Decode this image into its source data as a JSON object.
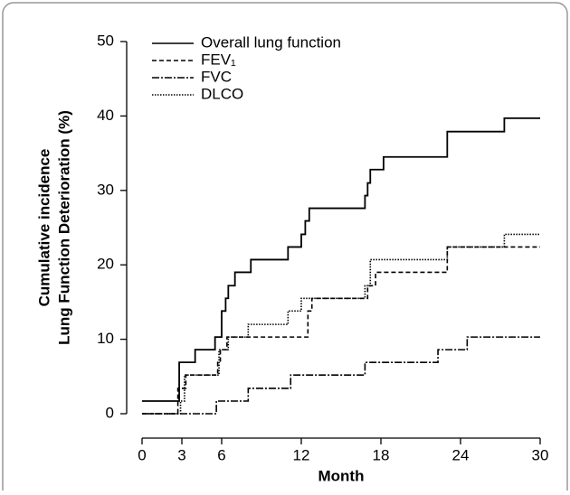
{
  "chart_data": {
    "type": "step",
    "xlabel": "Month",
    "ylabel": [
      "Cumulative incidence",
      "Lung Function Deterioration (%)"
    ],
    "xlim": [
      0,
      30
    ],
    "xticks": [
      0,
      3,
      6,
      12,
      18,
      24,
      30
    ],
    "ylim": [
      0,
      50
    ],
    "yticks": [
      0,
      10,
      20,
      30,
      40,
      50
    ],
    "legend": "upper left",
    "series": [
      {
        "name": "Overall lung function",
        "color": "#000000",
        "style": "solid",
        "x": [
          0,
          2.8,
          4,
          5.5,
          6,
          6.3,
          6.5,
          7,
          8.2,
          11,
          12,
          12.3,
          12.6,
          16.8,
          17,
          17.2,
          18.2,
          23,
          27.3,
          30
        ],
        "values": [
          1.7,
          6.9,
          8.6,
          10.3,
          13.8,
          15.5,
          17.2,
          19,
          20.7,
          22.4,
          24.1,
          25.9,
          27.6,
          29.3,
          31,
          32.8,
          34.5,
          37.9,
          39.7,
          39.7
        ]
      },
      {
        "name": "FEV₁",
        "color": "#000000",
        "style": "dashed",
        "x": [
          0,
          2.7,
          3.3,
          5.7,
          5.9,
          6.4,
          12.5,
          12.8,
          17,
          17.6,
          23,
          30
        ],
        "values": [
          0,
          3.4,
          5.2,
          6.9,
          8.6,
          10.3,
          13.8,
          15.5,
          17.2,
          19,
          22.4,
          22.4
        ]
      },
      {
        "name": "FVC",
        "color": "#000000",
        "style": "dashdot",
        "x": [
          0,
          5.6,
          8,
          11.2,
          16.8,
          22.3,
          24.5,
          30
        ],
        "values": [
          0,
          1.7,
          3.4,
          5.2,
          6.9,
          8.6,
          10.3,
          10.3
        ]
      },
      {
        "name": "DLCO",
        "color": "#000000",
        "style": "dotted",
        "x": [
          0,
          2.9,
          3.2,
          5.8,
          6.5,
          8,
          11,
          12,
          16.8,
          17.2,
          23,
          27.3,
          30
        ],
        "values": [
          0,
          1.7,
          5.2,
          8.6,
          10.3,
          12,
          13.8,
          15.5,
          17.2,
          20.7,
          22.4,
          24.1,
          24.1
        ]
      }
    ]
  }
}
